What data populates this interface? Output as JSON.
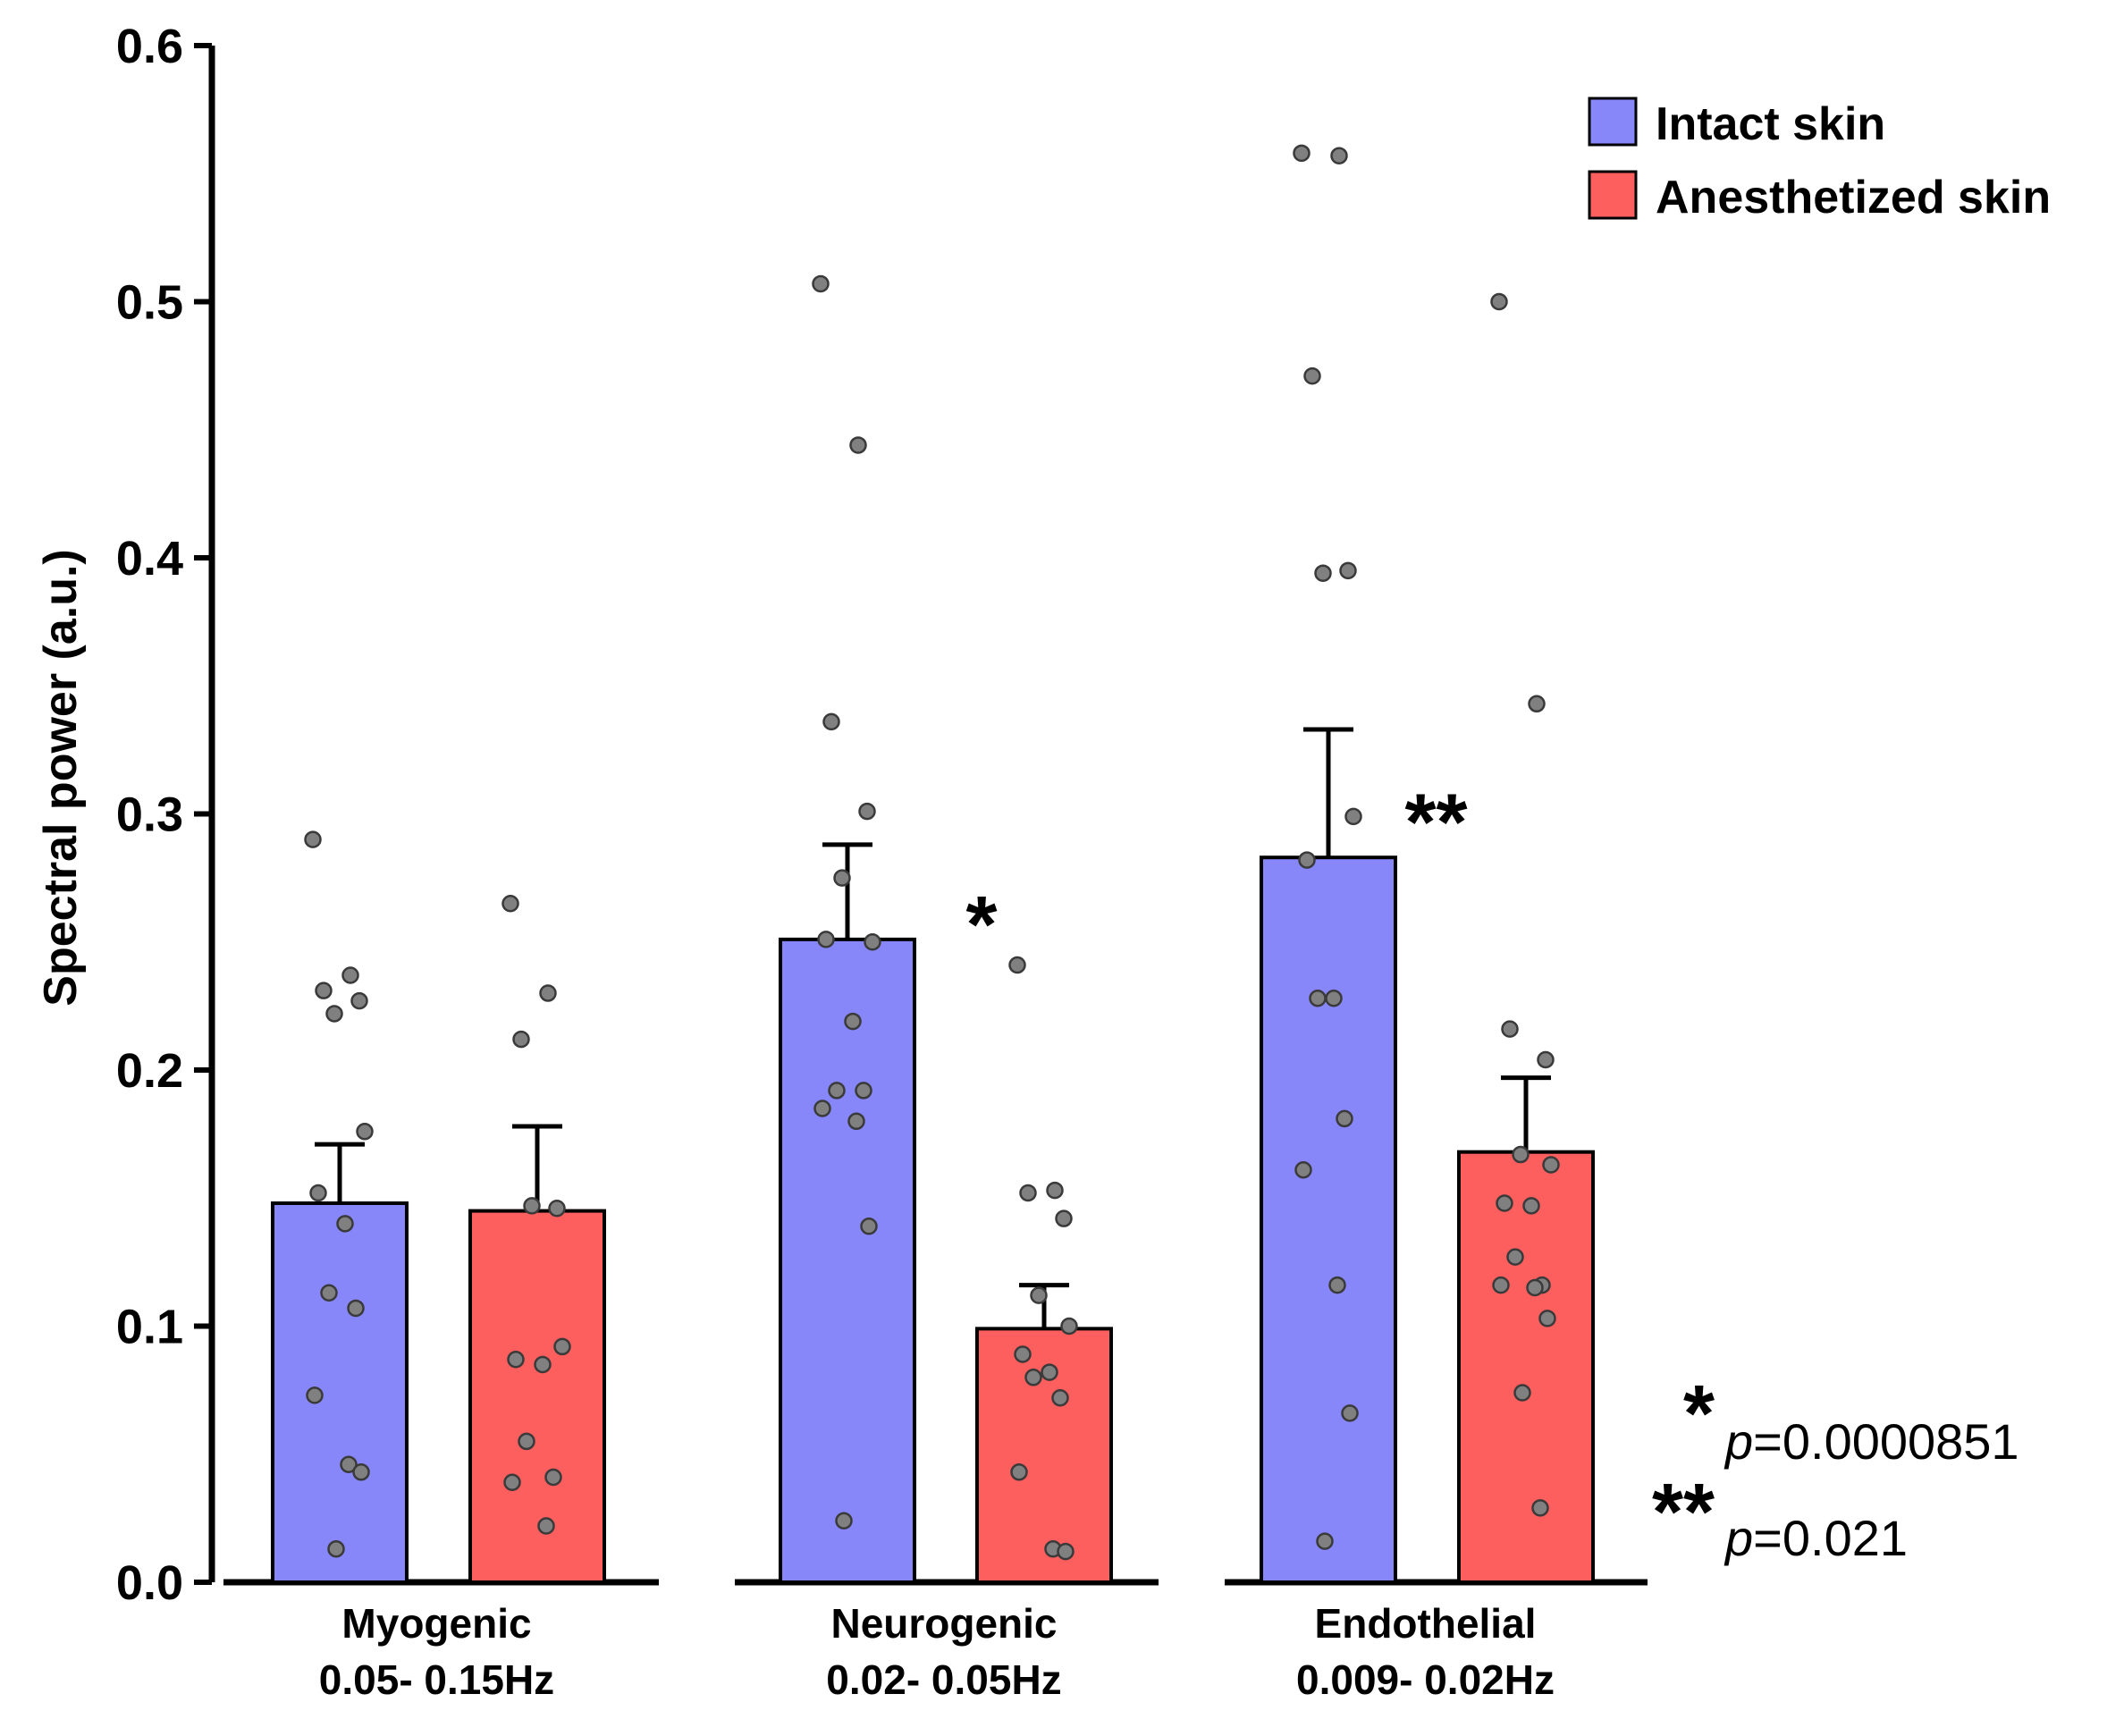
{
  "chart_data": {
    "type": "bar",
    "ylabel": "Spectral power (a.u.)",
    "ylim": [
      0,
      0.6
    ],
    "yticks": [
      "0.0",
      "0.1",
      "0.2",
      "0.3",
      "0.4",
      "0.5",
      "0.6"
    ],
    "groups": [
      {
        "name": "Myogenic",
        "range": "0.05- 0.15Hz"
      },
      {
        "name": "Neurogenic",
        "range": "0.02- 0.05Hz"
      },
      {
        "name": "Endothelial",
        "range": "0.009- 0.02Hz"
      }
    ],
    "legend_position": "top-right",
    "series": [
      {
        "name": "Intact skin",
        "color": "#8787fa",
        "values": [
          0.148,
          0.251,
          0.283
        ],
        "errors": [
          0.023,
          0.037,
          0.05
        ],
        "points": [
          [
            0.29,
            0.237,
            0.231,
            0.227,
            0.222,
            0.176,
            0.152,
            0.14,
            0.113,
            0.107,
            0.073,
            0.046,
            0.043,
            0.013
          ],
          [
            0.507,
            0.444,
            0.336,
            0.301,
            0.275,
            0.25,
            0.251,
            0.219,
            0.192,
            0.192,
            0.185,
            0.18,
            0.139,
            0.024
          ],
          [
            0.558,
            0.557,
            0.471,
            0.395,
            0.394,
            0.299,
            0.282,
            0.228,
            0.228,
            0.181,
            0.161,
            0.116,
            0.066,
            0.016
          ]
        ]
      },
      {
        "name": "Anesthetized skin",
        "color": "#fd5e5e",
        "values": [
          0.145,
          0.099,
          0.168
        ],
        "errors": [
          0.033,
          0.017,
          0.029
        ],
        "points": [
          [
            0.265,
            0.23,
            0.212,
            0.146,
            0.147,
            0.092,
            0.087,
            0.085,
            0.055,
            0.041,
            0.039,
            0.022
          ],
          [
            0.241,
            0.153,
            0.152,
            0.142,
            0.112,
            0.1,
            0.089,
            0.082,
            0.08,
            0.072,
            0.043,
            0.013,
            0.012
          ],
          [
            0.5,
            0.343,
            0.216,
            0.204,
            0.167,
            0.163,
            0.148,
            0.147,
            0.127,
            0.116,
            0.116,
            0.115,
            0.103,
            0.074,
            0.029
          ]
        ]
      }
    ],
    "significance": [
      {
        "group": 1,
        "label": "*",
        "y": 0.26
      },
      {
        "group": 2,
        "label": "**",
        "y": 0.3
      }
    ],
    "pvalues": [
      {
        "stars": "*",
        "p": "p",
        "value": "=0.0000851"
      },
      {
        "stars": "**",
        "p": "p",
        "value": "=0.021"
      }
    ],
    "point_color": "#808080"
  }
}
